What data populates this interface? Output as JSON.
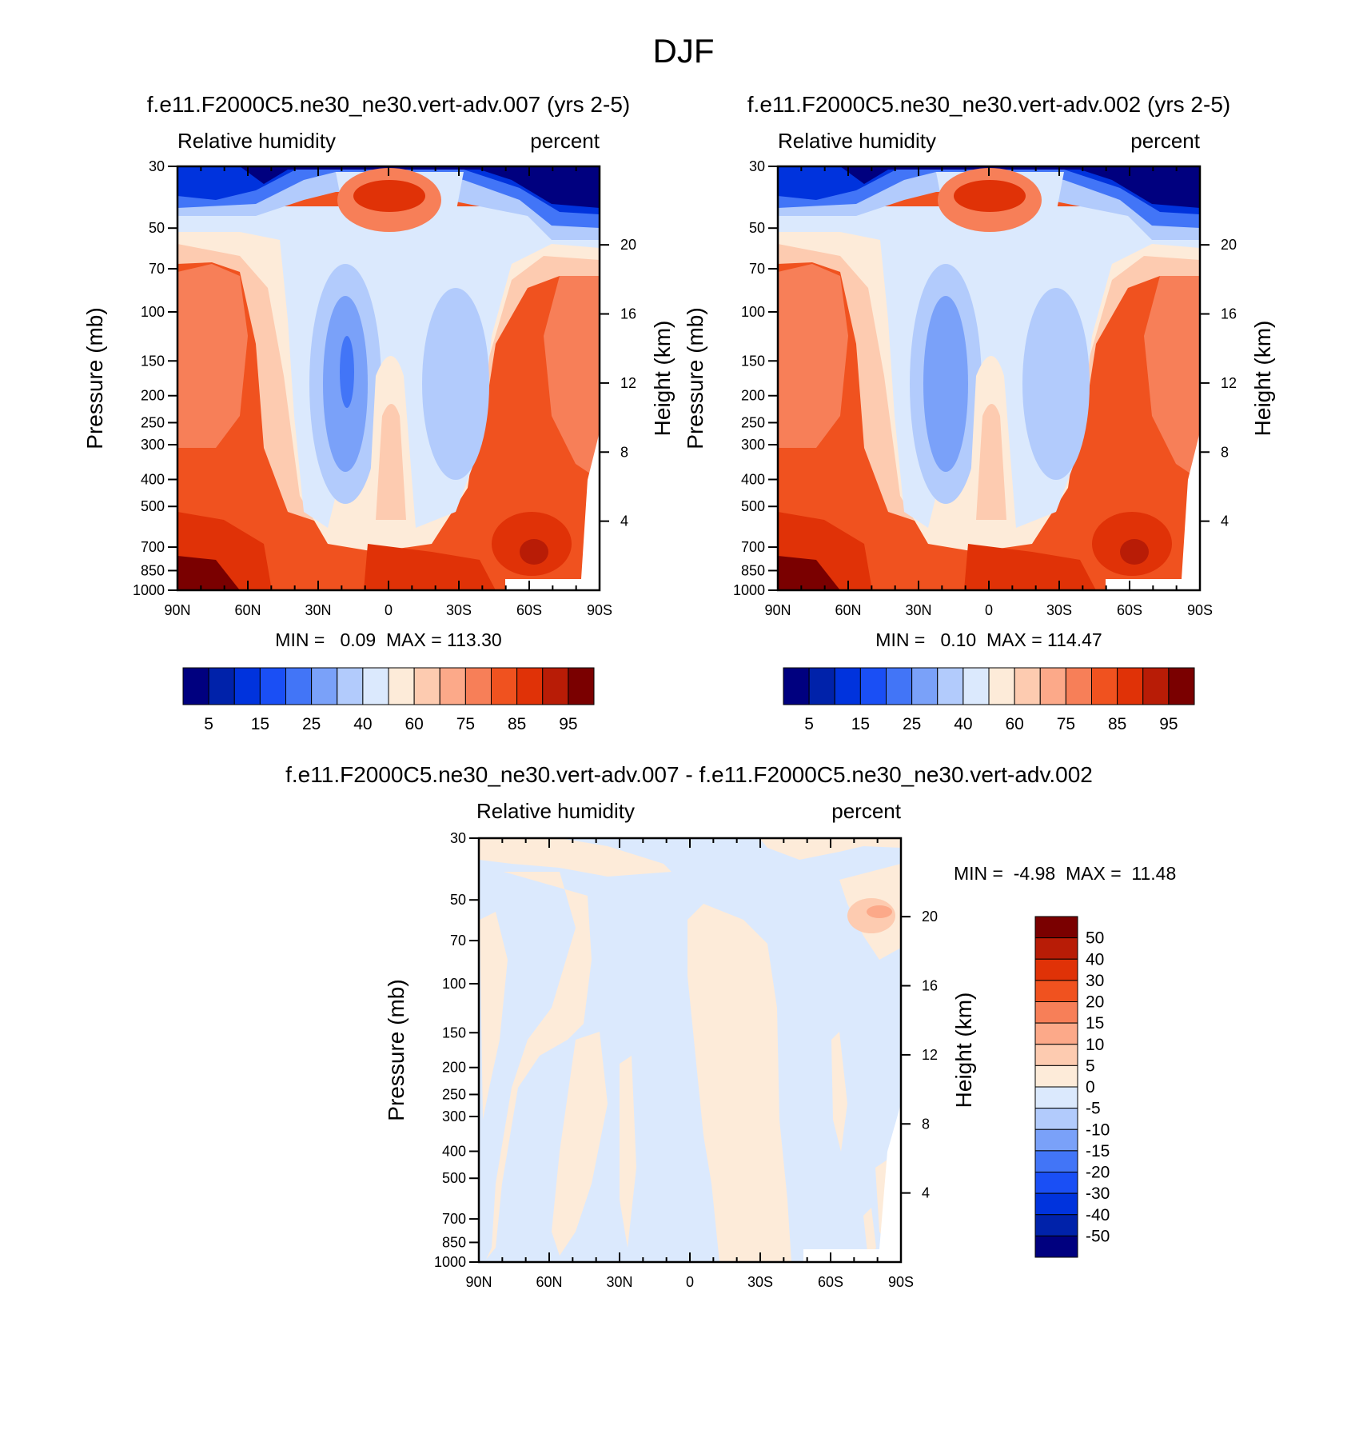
{
  "figure": {
    "title": "DJF"
  },
  "chart_data": [
    {
      "type": "contour",
      "title": "f.e11.F2000C5.ne30_ne30.vert-adv.007 (yrs 2-5)",
      "left_label": "Relative humidity",
      "right_label": "percent",
      "ylabel": "Pressure (mb)",
      "ylabel_right": "Height (km)",
      "x_ticks": [
        "90N",
        "60N",
        "30N",
        "0",
        "30S",
        "60S",
        "90S"
      ],
      "y_ticks": [
        "30",
        "50",
        "70",
        "100",
        "150",
        "200",
        "250",
        "300",
        "400",
        "500",
        "700",
        "850",
        "1000"
      ],
      "y_ticks_right": [
        "20",
        "16",
        "12",
        "8",
        "4"
      ],
      "stats_label": "MIN =   0.09  MAX = 113.30",
      "min": 0.09,
      "max": 113.3,
      "levels": [
        5,
        10,
        15,
        20,
        25,
        30,
        40,
        50,
        60,
        70,
        75,
        80,
        85,
        90,
        95
      ],
      "colorbar_labels": [
        "5",
        "15",
        "25",
        "40",
        "60",
        "75",
        "85",
        "95"
      ]
    },
    {
      "type": "contour",
      "title": "f.e11.F2000C5.ne30_ne30.vert-adv.002 (yrs 2-5)",
      "left_label": "Relative humidity",
      "right_label": "percent",
      "ylabel": "Pressure (mb)",
      "ylabel_right": "Height (km)",
      "x_ticks": [
        "90N",
        "60N",
        "30N",
        "0",
        "30S",
        "60S",
        "90S"
      ],
      "y_ticks": [
        "30",
        "50",
        "70",
        "100",
        "150",
        "200",
        "250",
        "300",
        "400",
        "500",
        "700",
        "850",
        "1000"
      ],
      "y_ticks_right": [
        "20",
        "16",
        "12",
        "8",
        "4"
      ],
      "stats_label": "MIN =   0.10  MAX = 114.47",
      "min": 0.1,
      "max": 114.47,
      "levels": [
        5,
        10,
        15,
        20,
        25,
        30,
        40,
        50,
        60,
        70,
        75,
        80,
        85,
        90,
        95
      ],
      "colorbar_labels": [
        "5",
        "15",
        "25",
        "40",
        "60",
        "75",
        "85",
        "95"
      ]
    },
    {
      "type": "contour",
      "title": "f.e11.F2000C5.ne30_ne30.vert-adv.007 - f.e11.F2000C5.ne30_ne30.vert-adv.002",
      "left_label": "Relative humidity",
      "right_label": "percent",
      "ylabel": "Pressure (mb)",
      "ylabel_right": "Height (km)",
      "x_ticks": [
        "90N",
        "60N",
        "30N",
        "0",
        "30S",
        "60S",
        "90S"
      ],
      "y_ticks": [
        "30",
        "50",
        "70",
        "100",
        "150",
        "200",
        "250",
        "300",
        "400",
        "500",
        "700",
        "850",
        "1000"
      ],
      "y_ticks_right": [
        "20",
        "16",
        "12",
        "8",
        "4"
      ],
      "stats_label": "MIN =  -4.98  MAX =  11.48",
      "min": -4.98,
      "max": 11.48,
      "levels": [
        -50,
        -40,
        -30,
        -20,
        -15,
        -10,
        -5,
        0,
        5,
        10,
        15,
        20,
        30,
        40,
        50
      ],
      "colorbar_labels": [
        "50",
        "40",
        "30",
        "20",
        "15",
        "10",
        "5",
        "0",
        "-5",
        "-10",
        "-15",
        "-20",
        "-30",
        "-40",
        "-50"
      ]
    }
  ],
  "palette": [
    "#00007f",
    "#0022aa",
    "#0033dd",
    "#1a4ff5",
    "#4275f7",
    "#7aa1f9",
    "#b2cbfc",
    "#dbe9fd",
    "#fdebd9",
    "#fdcbb0",
    "#fca989",
    "#f77f58",
    "#f0521f",
    "#e03207",
    "#b81c06",
    "#7a0000"
  ]
}
